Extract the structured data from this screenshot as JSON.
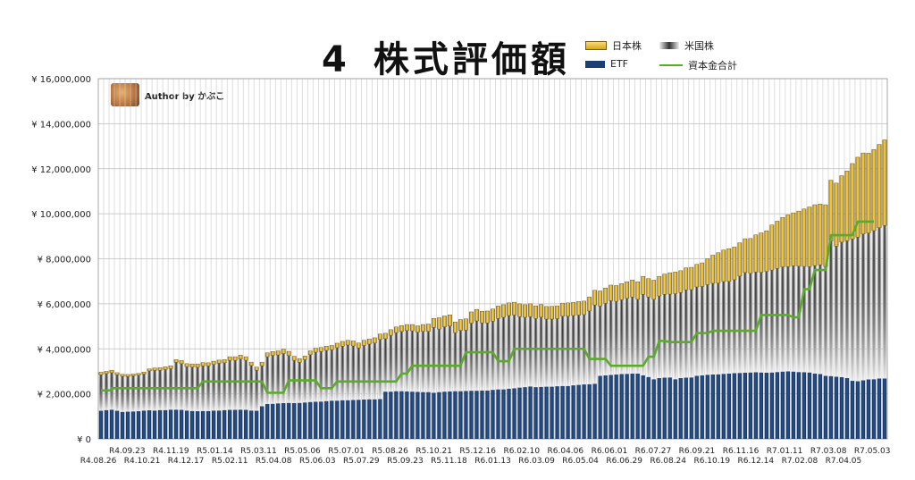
{
  "title": {
    "number": "4",
    "text": "株式評価額"
  },
  "author": {
    "text": "Author by かぶこ"
  },
  "legend": [
    {
      "label": "日本株",
      "kind": "bar",
      "color": "#f0c030"
    },
    {
      "label": "米国株",
      "kind": "bar",
      "color": "#3a3a3a"
    },
    {
      "label": "ETF",
      "kind": "bar",
      "color": "#1b3f73"
    },
    {
      "label": "資本金合計",
      "kind": "line",
      "color": "#5aab2a"
    }
  ],
  "chart_data": {
    "type": "bar",
    "stacking": "stacked",
    "series_order": [
      "ETF",
      "米国株",
      "日本株"
    ],
    "line_series": "資本金合計",
    "ylim": [
      0,
      16000000
    ],
    "yticks": [
      "¥ 0",
      "¥ 2,000,000",
      "¥ 4,000,000",
      "¥ 6,000,000",
      "¥ 8,000,000",
      "¥ 10,000,000",
      "¥ 12,000,000",
      "¥ 14,000,000",
      "¥ 16,000,000"
    ],
    "ytick_values": [
      0,
      2000000,
      4000000,
      6000000,
      8000000,
      10000000,
      12000000,
      14000000,
      16000000
    ],
    "grid": true,
    "xtick_labels_top": [
      "R4.09.23",
      "R4.11.19",
      "R5.01.14",
      "R5.03.11",
      "R5.05.06",
      "R5.07.01",
      "R5.08.26",
      "R5.10.21",
      "R5.12.16",
      "R6.02.10",
      "R6.04.06",
      "R6.06.01",
      "R6.07.27",
      "R6.09.21",
      "R6.11.16",
      "R7.01.11",
      "R7.03.08",
      "R7.05.03"
    ],
    "xtick_labels_bottom": [
      "R4.08.26",
      "R4.10.21",
      "R4.12.17",
      "R5.02.11",
      "R5.04.08",
      "R5.06.03",
      "R5.07.29",
      "R5.09.23",
      "R5.11.18",
      "R6.01.13",
      "R6.03.09",
      "R6.05.04",
      "R6.06.29",
      "R6.08.24",
      "R6.10.19",
      "R6.12.14",
      "R7.02.08",
      "R7.04.05"
    ],
    "ETF": [
      1250000,
      1280000,
      1300000,
      1250000,
      1200000,
      1210000,
      1220000,
      1230000,
      1260000,
      1270000,
      1260000,
      1280000,
      1280000,
      1300000,
      1300000,
      1290000,
      1260000,
      1240000,
      1230000,
      1240000,
      1240000,
      1260000,
      1260000,
      1280000,
      1290000,
      1290000,
      1300000,
      1290000,
      1260000,
      1250000,
      1450000,
      1550000,
      1560000,
      1580000,
      1590000,
      1600000,
      1590000,
      1600000,
      1620000,
      1640000,
      1650000,
      1660000,
      1680000,
      1700000,
      1700000,
      1720000,
      1720000,
      1730000,
      1740000,
      1750000,
      1760000,
      1760000,
      1770000,
      2100000,
      2100000,
      2120000,
      2120000,
      2110000,
      2100000,
      2090000,
      2080000,
      2080000,
      2050000,
      2080000,
      2100000,
      2110000,
      2120000,
      2120000,
      2130000,
      2140000,
      2140000,
      2150000,
      2150000,
      2180000,
      2200000,
      2200000,
      2230000,
      2250000,
      2280000,
      2300000,
      2330000,
      2300000,
      2310000,
      2320000,
      2320000,
      2340000,
      2350000,
      2350000,
      2380000,
      2400000,
      2420000,
      2430000,
      2450000,
      2800000,
      2820000,
      2840000,
      2860000,
      2880000,
      2890000,
      2900000,
      2900000,
      2820000,
      2750000,
      2650000,
      2700000,
      2720000,
      2730000,
      2650000,
      2700000,
      2720000,
      2730000,
      2800000,
      2820000,
      2850000,
      2860000,
      2870000,
      2890000,
      2900000,
      2920000,
      2930000,
      2940000,
      2950000,
      2960000,
      2950000,
      2940000,
      2950000,
      2970000,
      2990000,
      3000000,
      2990000,
      2970000,
      2960000,
      2950000,
      2900000,
      2880000,
      2800000,
      2790000,
      2760000,
      2740000,
      2700000,
      2580000,
      2560000,
      2600000,
      2640000,
      2650000,
      2680000,
      2680000
    ],
    "米国株": [
      1600000,
      1620000,
      1640000,
      1600000,
      1580000,
      1560000,
      1580000,
      1600000,
      1620000,
      1750000,
      1780000,
      1770000,
      1800000,
      1820000,
      2100000,
      2050000,
      1950000,
      1950000,
      1950000,
      2000000,
      2000000,
      2050000,
      2100000,
      2100000,
      2200000,
      2200000,
      2250000,
      2200000,
      2000000,
      1800000,
      1800000,
      2100000,
      2150000,
      2150000,
      2200000,
      2100000,
      1900000,
      1800000,
      1900000,
      2100000,
      2200000,
      2220000,
      2250000,
      2260000,
      2350000,
      2400000,
      2450000,
      2400000,
      2300000,
      2400000,
      2450000,
      2500000,
      2650000,
      2350000,
      2500000,
      2600000,
      2650000,
      2700000,
      2700000,
      2650000,
      2700000,
      2700000,
      2900000,
      2800000,
      2880000,
      2900000,
      2600000,
      2700000,
      2700000,
      3000000,
      3100000,
      3000000,
      3000000,
      3050000,
      3150000,
      3200000,
      3250000,
      3250000,
      3150000,
      3100000,
      3100000,
      3050000,
      3100000,
      3000000,
      3000000,
      3000000,
      3100000,
      3100000,
      3100000,
      3100000,
      3100000,
      3250000,
      3500000,
      3100000,
      3200000,
      3300000,
      3250000,
      3300000,
      3350000,
      3400000,
      3300000,
      3600000,
      3550000,
      3550000,
      3650000,
      3700000,
      3700000,
      3800000,
      3800000,
      3900000,
      3900000,
      3950000,
      3950000,
      4000000,
      4050000,
      4050000,
      4100000,
      4100000,
      4150000,
      4300000,
      4450000,
      4400000,
      4450000,
      4450000,
      4500000,
      4550000,
      4600000,
      4650000,
      4650000,
      4700000,
      4700000,
      4700000,
      4700000,
      4800000,
      4850000,
      4850000,
      6000000,
      5800000,
      6000000,
      6100000,
      6300000,
      6400000,
      6500000,
      6500000,
      6600000,
      6700000,
      6800000
    ],
    "日本株": [
      110000,
      100000,
      110000,
      90000,
      90000,
      90000,
      80000,
      80000,
      90000,
      90000,
      110000,
      110000,
      120000,
      130000,
      120000,
      140000,
      130000,
      140000,
      150000,
      150000,
      140000,
      140000,
      140000,
      140000,
      160000,
      160000,
      170000,
      160000,
      150000,
      140000,
      160000,
      170000,
      170000,
      180000,
      190000,
      190000,
      180000,
      170000,
      160000,
      170000,
      180000,
      180000,
      190000,
      190000,
      200000,
      210000,
      210000,
      220000,
      220000,
      230000,
      230000,
      230000,
      240000,
      240000,
      250000,
      250000,
      260000,
      270000,
      280000,
      280000,
      300000,
      320000,
      400000,
      500000,
      480000,
      500000,
      470000,
      480000,
      500000,
      500000,
      510000,
      520000,
      530000,
      540000,
      550000,
      560000,
      560000,
      570000,
      570000,
      560000,
      570000,
      560000,
      560000,
      560000,
      570000,
      570000,
      580000,
      590000,
      580000,
      600000,
      600000,
      620000,
      650000,
      670000,
      680000,
      690000,
      700000,
      720000,
      740000,
      760000,
      780000,
      800000,
      820000,
      850000,
      870000,
      900000,
      950000,
      960000,
      970000,
      980000,
      990000,
      1000000,
      1050000,
      1150000,
      1250000,
      1350000,
      1400000,
      1450000,
      1450000,
      1480000,
      1500000,
      1550000,
      1650000,
      1750000,
      1800000,
      2000000,
      2100000,
      2200000,
      2300000,
      2350000,
      2450000,
      2550000,
      2650000,
      2700000,
      2700000,
      2750000,
      2700000,
      2800000,
      2950000,
      3100000,
      3350000,
      3550000,
      3600000,
      3550000,
      3600000,
      3700000,
      3800000
    ],
    "資本金合計_steps": [
      {
        "from": 0,
        "to": 2,
        "value": 2150000
      },
      {
        "from": 2,
        "to": 18,
        "value": 2250000
      },
      {
        "from": 19,
        "to": 30,
        "value": 2550000
      },
      {
        "from": 31,
        "to": 34,
        "value": 2050000
      },
      {
        "from": 35,
        "to": 40,
        "value": 2600000
      },
      {
        "from": 41,
        "to": 43,
        "value": 2250000
      },
      {
        "from": 44,
        "to": 55,
        "value": 2550000
      },
      {
        "from": 56,
        "to": 57,
        "value": 2900000
      },
      {
        "from": 58,
        "to": 67,
        "value": 3250000
      },
      {
        "from": 68,
        "to": 73,
        "value": 3850000
      },
      {
        "from": 74,
        "to": 76,
        "value": 3450000
      },
      {
        "from": 77,
        "to": 90,
        "value": 4000000
      },
      {
        "from": 91,
        "to": 94,
        "value": 3550000
      },
      {
        "from": 95,
        "to": 101,
        "value": 3250000
      },
      {
        "from": 102,
        "to": 103,
        "value": 3650000
      },
      {
        "from": 104,
        "to": 105,
        "value": 4350000
      },
      {
        "from": 106,
        "to": 110,
        "value": 4300000
      },
      {
        "from": 111,
        "to": 113,
        "value": 4700000
      },
      {
        "from": 114,
        "to": 122,
        "value": 4800000
      },
      {
        "from": 123,
        "to": 128,
        "value": 5500000
      },
      {
        "from": 129,
        "to": 130,
        "value": 5400000
      },
      {
        "from": 131,
        "to": 132,
        "value": 6650000
      },
      {
        "from": 133,
        "to": 135,
        "value": 7500000
      },
      {
        "from": 136,
        "to": 140,
        "value": 9050000
      },
      {
        "from": 141,
        "to": 144,
        "value": 9650000
      }
    ]
  }
}
